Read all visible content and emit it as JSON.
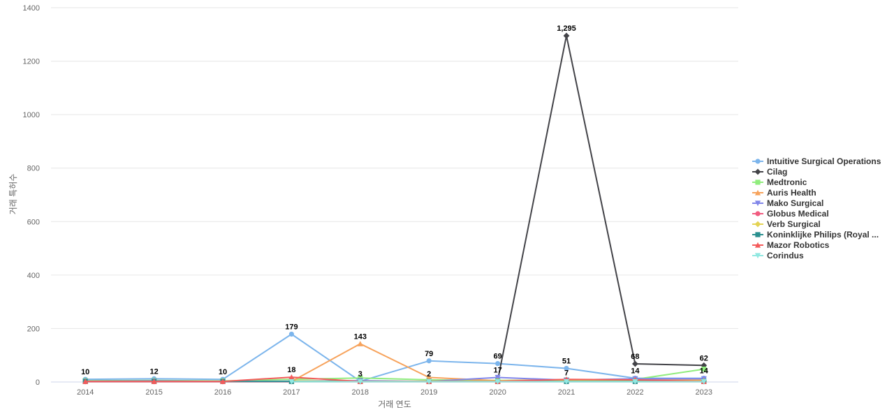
{
  "chart_data": {
    "type": "line",
    "title": "",
    "xlabel": "거래 연도",
    "ylabel": "거래 특허수",
    "x": [
      "2014",
      "2015",
      "2016",
      "2017",
      "2018",
      "2019",
      "2020",
      "2021",
      "2022",
      "2023"
    ],
    "ylim": [
      0,
      1400
    ],
    "yticks": [
      0,
      200,
      400,
      600,
      800,
      1000,
      1200,
      1400
    ],
    "grid": true,
    "legend_position": "right",
    "series": [
      {
        "name": "Intuitive Surgical Operations",
        "color": "#7cb5ec",
        "marker": "circle",
        "values": [
          10,
          12,
          10,
          179,
          3,
          79,
          69,
          51,
          14,
          14
        ],
        "labels": [
          true,
          true,
          true,
          true,
          true,
          true,
          true,
          true,
          true,
          true
        ]
      },
      {
        "name": "Cilag",
        "color": "#434348",
        "marker": "diamond",
        "values": [
          null,
          null,
          null,
          null,
          null,
          null,
          6,
          1295,
          68,
          62
        ],
        "labels": [
          false,
          false,
          false,
          false,
          false,
          false,
          false,
          true,
          true,
          true
        ]
      },
      {
        "name": "Medtronic",
        "color": "#90ed7d",
        "marker": "square",
        "values": [
          5,
          6,
          4,
          10,
          15,
          8,
          6,
          8,
          10,
          48
        ],
        "labels": [
          false,
          false,
          false,
          false,
          false,
          false,
          false,
          false,
          false,
          false
        ]
      },
      {
        "name": "Auris Health",
        "color": "#f7a35c",
        "marker": "triangle",
        "values": [
          null,
          null,
          null,
          2,
          143,
          17,
          5,
          9,
          8,
          8
        ],
        "labels": [
          false,
          false,
          false,
          false,
          true,
          false,
          false,
          false,
          false,
          false
        ]
      },
      {
        "name": "Mako Surgical",
        "color": "#8085e9",
        "marker": "triangle-down",
        "values": [
          3,
          4,
          2,
          3,
          5,
          2,
          17,
          7,
          12,
          12
        ],
        "labels": [
          false,
          false,
          false,
          false,
          false,
          true,
          true,
          true,
          false,
          false
        ]
      },
      {
        "name": "Globus Medical",
        "color": "#f15c80",
        "marker": "circle",
        "values": [
          1,
          1,
          1,
          1,
          1,
          1,
          1,
          1,
          1,
          1
        ],
        "labels": [
          false,
          false,
          false,
          false,
          false,
          false,
          false,
          false,
          false,
          false
        ]
      },
      {
        "name": "Verb Surgical",
        "color": "#e4d354",
        "marker": "diamond",
        "values": [
          null,
          null,
          null,
          4,
          2,
          3,
          4,
          5,
          6,
          4
        ],
        "labels": [
          false,
          false,
          false,
          false,
          false,
          false,
          false,
          false,
          false,
          false
        ]
      },
      {
        "name": "Koninklijke Philips (Royal ...",
        "color": "#2b908f",
        "marker": "square",
        "values": [
          2,
          2,
          2,
          2,
          2,
          2,
          2,
          2,
          2,
          2
        ],
        "labels": [
          false,
          false,
          false,
          false,
          false,
          false,
          false,
          false,
          false,
          false
        ]
      },
      {
        "name": "Mazor Robotics",
        "color": "#f45b5b",
        "marker": "triangle",
        "values": [
          2,
          2,
          2,
          18,
          2,
          2,
          2,
          10,
          8,
          2
        ],
        "labels": [
          false,
          false,
          false,
          true,
          false,
          false,
          false,
          false,
          false,
          false
        ]
      },
      {
        "name": "Corindus",
        "color": "#91e8e1",
        "marker": "triangle-down",
        "values": [
          null,
          null,
          null,
          1,
          1,
          1,
          1,
          1,
          1,
          1
        ],
        "labels": [
          false,
          false,
          false,
          false,
          false,
          false,
          false,
          false,
          false,
          false
        ]
      }
    ]
  }
}
